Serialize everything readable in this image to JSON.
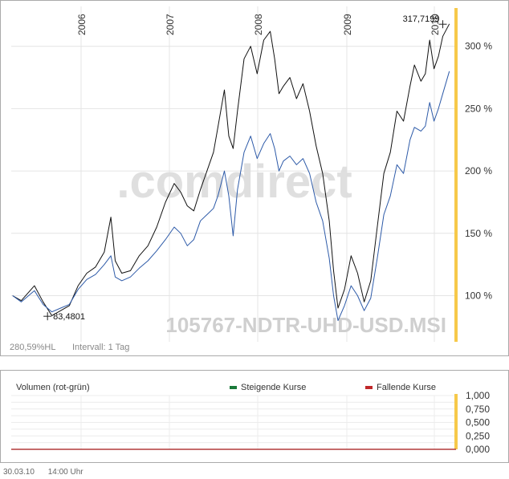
{
  "chart_data": [
    {
      "type": "line",
      "x_tick_labels": [
        "2006",
        "2007",
        "2008",
        "2009",
        "2010"
      ],
      "y_tick_labels": [
        "100 %",
        "150 %",
        "200 %",
        "250 %",
        "300 %"
      ],
      "ylim": [
        63,
        332
      ],
      "grid": true,
      "watermark": ".comdirect",
      "instrument_label": "105767-NDTR-UHD-USD.MSI",
      "info_left": "280,59%HL",
      "info_interval": "Intervall: 1 Tag",
      "annotations": [
        {
          "text": "83,4801",
          "t": 0.08,
          "value": 83.48
        },
        {
          "text": "317,7199",
          "t": 0.985,
          "value": 317.72
        }
      ],
      "series": [
        {
          "color": "#111111",
          "points": [
            [
              0.0,
              100
            ],
            [
              0.02,
              96
            ],
            [
              0.05,
              108
            ],
            [
              0.07,
              95
            ],
            [
              0.09,
              84
            ],
            [
              0.11,
              88
            ],
            [
              0.13,
              92
            ],
            [
              0.15,
              108
            ],
            [
              0.17,
              118
            ],
            [
              0.19,
              123
            ],
            [
              0.21,
              135
            ],
            [
              0.225,
              163
            ],
            [
              0.235,
              128
            ],
            [
              0.25,
              118
            ],
            [
              0.27,
              120
            ],
            [
              0.29,
              132
            ],
            [
              0.31,
              140
            ],
            [
              0.33,
              155
            ],
            [
              0.35,
              175
            ],
            [
              0.37,
              190
            ],
            [
              0.385,
              183
            ],
            [
              0.4,
              172
            ],
            [
              0.415,
              168
            ],
            [
              0.43,
              185
            ],
            [
              0.445,
              200
            ],
            [
              0.46,
              215
            ],
            [
              0.47,
              235
            ],
            [
              0.485,
              265
            ],
            [
              0.495,
              228
            ],
            [
              0.505,
              218
            ],
            [
              0.515,
              248
            ],
            [
              0.53,
              290
            ],
            [
              0.545,
              300
            ],
            [
              0.56,
              278
            ],
            [
              0.575,
              305
            ],
            [
              0.59,
              312
            ],
            [
              0.6,
              290
            ],
            [
              0.61,
              262
            ],
            [
              0.62,
              268
            ],
            [
              0.635,
              275
            ],
            [
              0.65,
              258
            ],
            [
              0.665,
              270
            ],
            [
              0.68,
              248
            ],
            [
              0.695,
              220
            ],
            [
              0.71,
              198
            ],
            [
              0.725,
              160
            ],
            [
              0.735,
              120
            ],
            [
              0.745,
              90
            ],
            [
              0.76,
              105
            ],
            [
              0.775,
              132
            ],
            [
              0.79,
              118
            ],
            [
              0.805,
              95
            ],
            [
              0.82,
              112
            ],
            [
              0.835,
              155
            ],
            [
              0.85,
              198
            ],
            [
              0.865,
              215
            ],
            [
              0.88,
              248
            ],
            [
              0.895,
              240
            ],
            [
              0.91,
              268
            ],
            [
              0.92,
              285
            ],
            [
              0.935,
              272
            ],
            [
              0.945,
              278
            ],
            [
              0.955,
              305
            ],
            [
              0.965,
              282
            ],
            [
              0.975,
              292
            ],
            [
              0.985,
              308
            ],
            [
              1.0,
              318
            ]
          ]
        },
        {
          "color": "#2d5aa8",
          "points": [
            [
              0.0,
              100
            ],
            [
              0.02,
              95
            ],
            [
              0.05,
              104
            ],
            [
              0.07,
              93
            ],
            [
              0.09,
              87
            ],
            [
              0.11,
              90
            ],
            [
              0.13,
              93
            ],
            [
              0.15,
              105
            ],
            [
              0.17,
              113
            ],
            [
              0.19,
              117
            ],
            [
              0.21,
              125
            ],
            [
              0.225,
              132
            ],
            [
              0.235,
              115
            ],
            [
              0.25,
              112
            ],
            [
              0.27,
              115
            ],
            [
              0.29,
              122
            ],
            [
              0.31,
              128
            ],
            [
              0.33,
              136
            ],
            [
              0.35,
              145
            ],
            [
              0.37,
              155
            ],
            [
              0.385,
              150
            ],
            [
              0.4,
              140
            ],
            [
              0.415,
              145
            ],
            [
              0.43,
              160
            ],
            [
              0.445,
              165
            ],
            [
              0.46,
              170
            ],
            [
              0.47,
              180
            ],
            [
              0.485,
              200
            ],
            [
              0.495,
              180
            ],
            [
              0.505,
              148
            ],
            [
              0.515,
              185
            ],
            [
              0.53,
              215
            ],
            [
              0.545,
              228
            ],
            [
              0.56,
              210
            ],
            [
              0.575,
              222
            ],
            [
              0.59,
              230
            ],
            [
              0.6,
              218
            ],
            [
              0.61,
              200
            ],
            [
              0.62,
              208
            ],
            [
              0.635,
              212
            ],
            [
              0.65,
              205
            ],
            [
              0.665,
              210
            ],
            [
              0.68,
              198
            ],
            [
              0.695,
              175
            ],
            [
              0.71,
              160
            ],
            [
              0.725,
              130
            ],
            [
              0.735,
              100
            ],
            [
              0.745,
              80
            ],
            [
              0.76,
              92
            ],
            [
              0.775,
              108
            ],
            [
              0.79,
              100
            ],
            [
              0.805,
              88
            ],
            [
              0.82,
              98
            ],
            [
              0.835,
              130
            ],
            [
              0.85,
              165
            ],
            [
              0.865,
              180
            ],
            [
              0.88,
              205
            ],
            [
              0.895,
              198
            ],
            [
              0.91,
              225
            ],
            [
              0.92,
              235
            ],
            [
              0.935,
              232
            ],
            [
              0.945,
              236
            ],
            [
              0.955,
              255
            ],
            [
              0.965,
              240
            ],
            [
              0.975,
              250
            ],
            [
              0.985,
              262
            ],
            [
              1.0,
              280
            ]
          ]
        }
      ]
    },
    {
      "type": "bar",
      "title": "Volumen (rot-grün)",
      "legend": [
        {
          "label": "Steigende Kurse",
          "color": "#1a7a3a"
        },
        {
          "label": "Fallende Kurse",
          "color": "#c0282a"
        }
      ],
      "y_tick_labels": [
        "1,000",
        "0,750",
        "0,500",
        "0,250",
        "0,000"
      ],
      "ylim": [
        0,
        1
      ],
      "values": []
    }
  ],
  "footer": {
    "date": "30.03.10",
    "time": "14:00 Uhr"
  }
}
